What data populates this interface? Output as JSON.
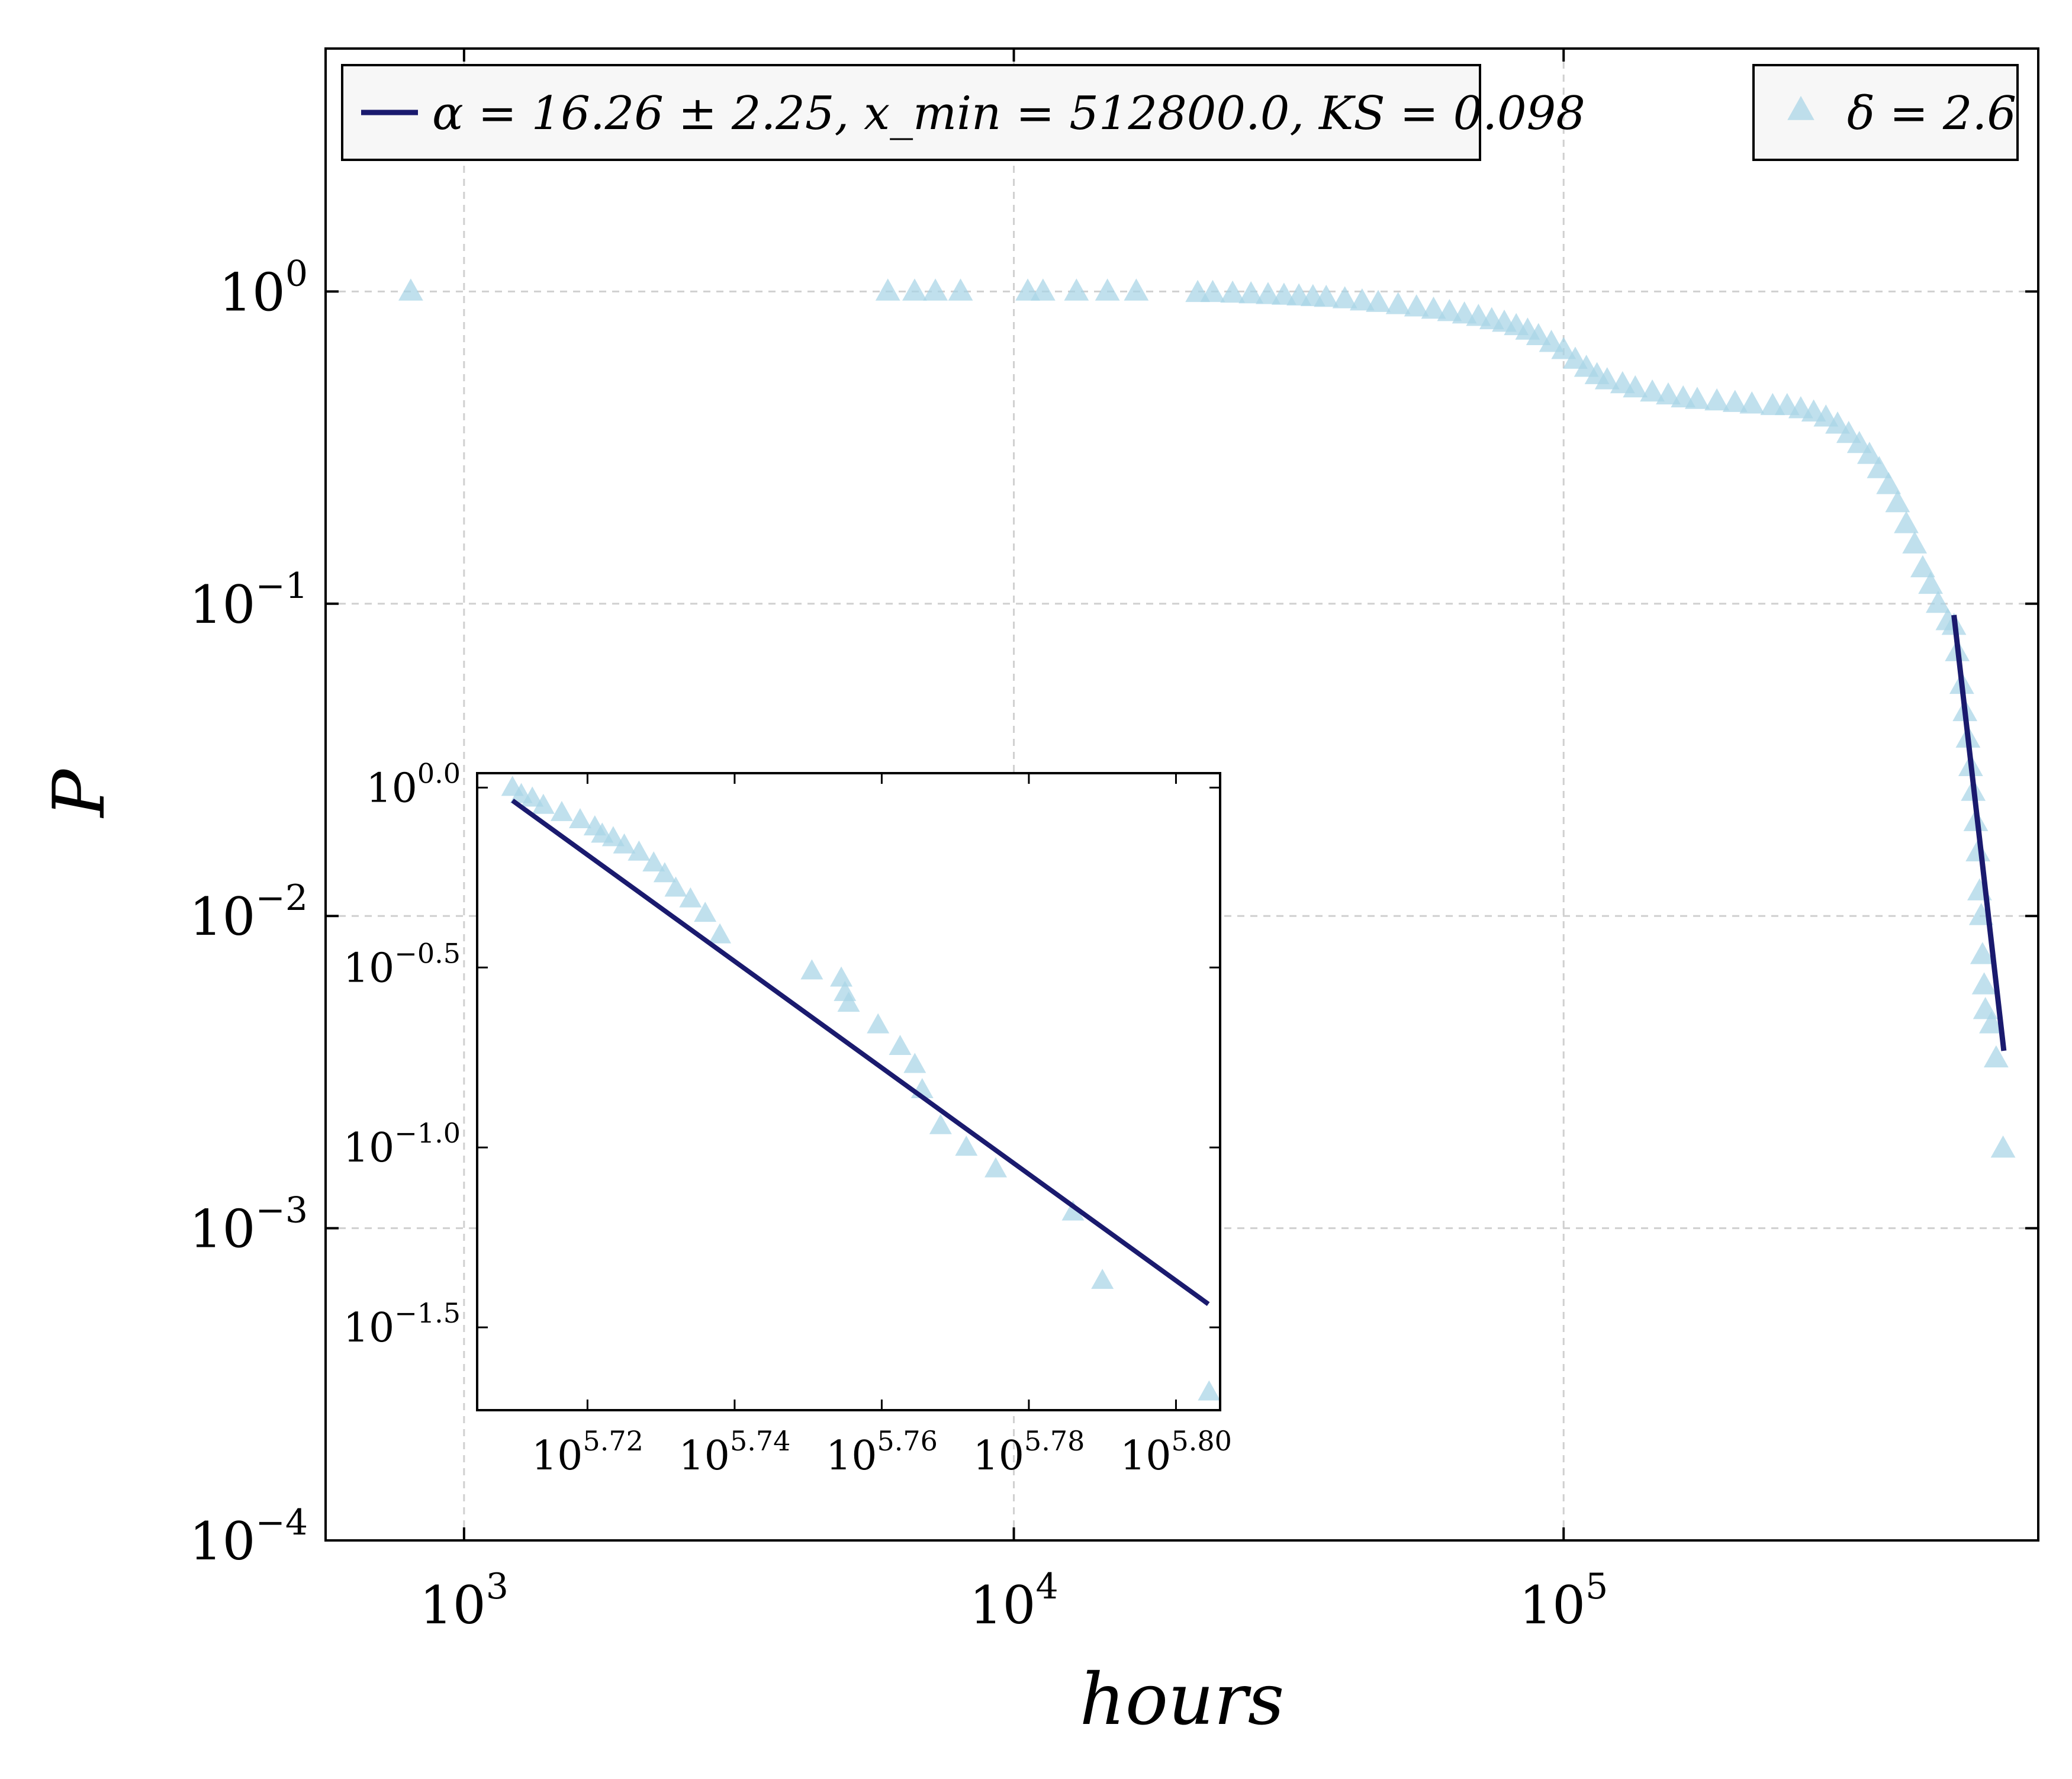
{
  "chart_data": [
    {
      "type": "scatter",
      "xlabel": "hours",
      "ylabel": "P",
      "xscale": "log",
      "yscale": "log",
      "xlim": [
        560,
        730000
      ],
      "ylim": [
        0.0001,
        6
      ],
      "grid": true,
      "x_ticks": [
        {
          "value": 1000,
          "base": "10",
          "exp": "3"
        },
        {
          "value": 10000,
          "base": "10",
          "exp": "4"
        },
        {
          "value": 100000,
          "base": "10",
          "exp": "5"
        }
      ],
      "y_ticks": [
        {
          "value": 1,
          "base": "10",
          "exp": "0"
        },
        {
          "value": 0.1,
          "base": "10",
          "exp": "−1"
        },
        {
          "value": 0.01,
          "base": "10",
          "exp": "−2"
        },
        {
          "value": 0.001,
          "base": "10",
          "exp": "−3"
        },
        {
          "value": 0.0001,
          "base": "10",
          "exp": "−4"
        }
      ],
      "legends": [
        {
          "placement": "top-left",
          "marker": "line",
          "text": "α = 16.26 ± 2.25, x_min = 512800.0, KS = 0.098"
        },
        {
          "placement": "top-right",
          "marker": "triangle",
          "text": "δ = 2.6"
        }
      ],
      "series": [
        {
          "name": "δ = 2.6",
          "kind": "scatter",
          "marker": "triangle",
          "color": "#a8d4e6",
          "points": [
            [
              800,
              1.0
            ],
            [
              5900,
              1.0
            ],
            [
              6600,
              1.0
            ],
            [
              7200,
              1.0
            ],
            [
              8000,
              1.0
            ],
            [
              10600,
              1.0
            ],
            [
              11300,
              1.0
            ],
            [
              13000,
              1.0
            ],
            [
              14800,
              1.0
            ],
            [
              16700,
              1.0
            ],
            [
              21600,
              0.99
            ],
            [
              23000,
              0.99
            ],
            [
              25000,
              0.985
            ],
            [
              27000,
              0.98
            ],
            [
              29000,
              0.975
            ],
            [
              31000,
              0.97
            ],
            [
              33000,
              0.965
            ],
            [
              35000,
              0.96
            ],
            [
              37000,
              0.955
            ],
            [
              40000,
              0.945
            ],
            [
              43000,
              0.93
            ],
            [
              46000,
              0.92
            ],
            [
              50000,
              0.905
            ],
            [
              54000,
              0.89
            ],
            [
              58000,
              0.875
            ],
            [
              62000,
              0.86
            ],
            [
              66000,
              0.845
            ],
            [
              70000,
              0.83
            ],
            [
              74000,
              0.81
            ],
            [
              78000,
              0.795
            ],
            [
              82000,
              0.775
            ],
            [
              86000,
              0.75
            ],
            [
              90000,
              0.72
            ],
            [
              95000,
              0.685
            ],
            [
              100000,
              0.65
            ],
            [
              105000,
              0.605
            ],
            [
              110000,
              0.57
            ],
            [
              115000,
              0.54
            ],
            [
              120000,
              0.52
            ],
            [
              128000,
              0.505
            ],
            [
              135000,
              0.49
            ],
            [
              145000,
              0.475
            ],
            [
              155000,
              0.465
            ],
            [
              165000,
              0.455
            ],
            [
              175000,
              0.45
            ],
            [
              190000,
              0.445
            ],
            [
              205000,
              0.44
            ],
            [
              220000,
              0.435
            ],
            [
              240000,
              0.43
            ],
            [
              255000,
              0.43
            ],
            [
              270000,
              0.42
            ],
            [
              285000,
              0.41
            ],
            [
              300000,
              0.395
            ],
            [
              315000,
              0.375
            ],
            [
              330000,
              0.35
            ],
            [
              345000,
              0.325
            ],
            [
              360000,
              0.3
            ],
            [
              375000,
              0.27
            ],
            [
              390000,
              0.24
            ],
            [
              405000,
              0.21
            ],
            [
              420000,
              0.18
            ],
            [
              435000,
              0.155
            ],
            [
              450000,
              0.13
            ],
            [
              465000,
              0.115
            ],
            [
              480000,
              0.1
            ],
            [
              500000,
              0.088
            ],
            [
              512800,
              0.085
            ],
            [
              520000,
              0.07
            ],
            [
              530000,
              0.055
            ],
            [
              537000,
              0.045
            ],
            [
              544000,
              0.037
            ],
            [
              550000,
              0.03
            ],
            [
              556000,
              0.025
            ],
            [
              562000,
              0.02
            ],
            [
              567000,
              0.016
            ],
            [
              571000,
              0.012
            ],
            [
              575000,
              0.01
            ],
            [
              578000,
              0.0075
            ],
            [
              582000,
              0.006
            ],
            [
              585000,
              0.005
            ],
            [
              600000,
              0.0045
            ],
            [
              612000,
              0.0035
            ],
            [
              630000,
              0.0018
            ]
          ]
        },
        {
          "name": "α = 16.26 ± 2.25, x_min = 512800.0, KS = 0.098",
          "kind": "line",
          "color": "#1a1a6e",
          "points": [
            [
              512800,
              0.092
            ],
            [
              632000,
              0.0037
            ]
          ]
        }
      ]
    },
    {
      "type": "scatter",
      "role": "inset",
      "xscale": "log",
      "yscale": "log",
      "xlim_log10": [
        5.705,
        5.806
      ],
      "ylim_log10": [
        -1.73,
        0.04
      ],
      "x_ticks": [
        {
          "value_log10": 5.72,
          "base": "10",
          "exp": "5.72"
        },
        {
          "value_log10": 5.74,
          "base": "10",
          "exp": "5.74"
        },
        {
          "value_log10": 5.76,
          "base": "10",
          "exp": "5.76"
        },
        {
          "value_log10": 5.78,
          "base": "10",
          "exp": "5.78"
        },
        {
          "value_log10": 5.8,
          "base": "10",
          "exp": "5.80"
        }
      ],
      "y_ticks": [
        {
          "value_log10": 0.0,
          "base": "10",
          "exp": "0.0"
        },
        {
          "value_log10": -0.5,
          "base": "10",
          "exp": "−0.5"
        },
        {
          "value_log10": -1.0,
          "base": "10",
          "exp": "−1.0"
        },
        {
          "value_log10": -1.5,
          "base": "10",
          "exp": "−1.5"
        }
      ],
      "series": [
        {
          "kind": "scatter",
          "marker": "triangle",
          "color": "#a8d4e6",
          "points_log10": [
            [
              5.7098,
              0.0
            ],
            [
              5.711,
              -0.02
            ],
            [
              5.7125,
              -0.03
            ],
            [
              5.714,
              -0.05
            ],
            [
              5.7165,
              -0.07
            ],
            [
              5.719,
              -0.09
            ],
            [
              5.721,
              -0.11
            ],
            [
              5.722,
              -0.13
            ],
            [
              5.7235,
              -0.14
            ],
            [
              5.725,
              -0.16
            ],
            [
              5.727,
              -0.18
            ],
            [
              5.729,
              -0.21
            ],
            [
              5.7305,
              -0.24
            ],
            [
              5.732,
              -0.28
            ],
            [
              5.734,
              -0.31
            ],
            [
              5.736,
              -0.35
            ],
            [
              5.738,
              -0.41
            ],
            [
              5.7505,
              -0.51
            ],
            [
              5.7545,
              -0.53
            ],
            [
              5.755,
              -0.57
            ],
            [
              5.7555,
              -0.6
            ],
            [
              5.7595,
              -0.66
            ],
            [
              5.7625,
              -0.72
            ],
            [
              5.7645,
              -0.77
            ],
            [
              5.7655,
              -0.84
            ],
            [
              5.768,
              -0.94
            ],
            [
              5.7715,
              -1.0
            ],
            [
              5.7755,
              -1.06
            ],
            [
              5.786,
              -1.18
            ],
            [
              5.79,
              -1.37
            ],
            [
              5.8045,
              -1.68
            ]
          ]
        },
        {
          "kind": "line",
          "color": "#1a1a6e",
          "points_log10": [
            [
              5.7098,
              -0.0361
            ],
            [
              5.8044,
              -1.4351
            ]
          ]
        }
      ]
    }
  ]
}
